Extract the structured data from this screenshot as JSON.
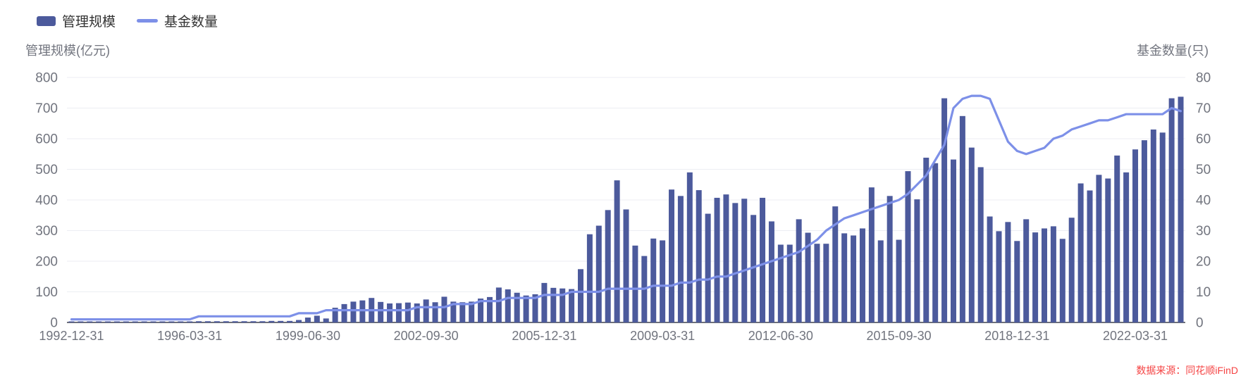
{
  "legend": [
    {
      "label": "管理规模",
      "type": "bar",
      "color": "#4C5A9C"
    },
    {
      "label": "基金数量",
      "type": "line",
      "color": "#7D90E8"
    }
  ],
  "axes": {
    "left_title": "管理规模(亿元)",
    "right_title": "基金数量(只)",
    "left_tick_labels": [
      "0",
      "100",
      "200",
      "300",
      "400",
      "500",
      "600",
      "700",
      "800"
    ],
    "right_tick_labels": [
      "0",
      "10",
      "20",
      "30",
      "40",
      "50",
      "60",
      "70",
      "80"
    ],
    "x_tick_labels": [
      "1992-12-31",
      "1996-03-31",
      "1999-06-30",
      "2002-09-30",
      "2005-12-31",
      "2009-03-31",
      "2012-06-30",
      "2015-09-30",
      "2018-12-31",
      "2022-03-31"
    ],
    "x_tick_indices": [
      0,
      13,
      26,
      39,
      52,
      65,
      78,
      91,
      104,
      117
    ]
  },
  "source_note": "数据来源：同花顺iFinD",
  "colors": {
    "bar": "#4C5A9C",
    "line": "#7D90E8",
    "grid": "#ECEEF3",
    "axis_line": "#6E7079",
    "tick_text": "#71747E",
    "legend_text": "#333333",
    "source_text": "#F54343"
  },
  "chart_data": {
    "type": "bar",
    "subtype": "bar+line dual axis",
    "title": "",
    "xlabel": "",
    "ylabel_left": "管理规模(亿元)",
    "ylabel_right": "基金数量(只)",
    "ylim_left": [
      0,
      800
    ],
    "ylim_right": [
      0,
      80
    ],
    "grid": true,
    "legend_position": "top-left",
    "categories": [
      "1992-12-31",
      "1993-03-31",
      "1993-06-30",
      "1993-09-30",
      "1993-12-31",
      "1994-03-31",
      "1994-06-30",
      "1994-09-30",
      "1994-12-31",
      "1995-03-31",
      "1995-06-30",
      "1995-09-30",
      "1995-12-31",
      "1996-03-31",
      "1996-06-30",
      "1996-09-30",
      "1996-12-31",
      "1997-03-31",
      "1997-06-30",
      "1997-09-30",
      "1997-12-31",
      "1998-03-31",
      "1998-06-30",
      "1998-09-30",
      "1998-12-31",
      "1999-03-31",
      "1999-06-30",
      "1999-09-30",
      "1999-12-31",
      "2000-03-31",
      "2000-06-30",
      "2000-09-30",
      "2000-12-31",
      "2001-03-31",
      "2001-06-30",
      "2001-09-30",
      "2001-12-31",
      "2002-03-31",
      "2002-06-30",
      "2002-09-30",
      "2002-12-31",
      "2003-03-31",
      "2003-06-30",
      "2003-09-30",
      "2003-12-31",
      "2004-03-31",
      "2004-06-30",
      "2004-09-30",
      "2004-12-31",
      "2005-03-31",
      "2005-06-30",
      "2005-09-30",
      "2005-12-31",
      "2006-03-31",
      "2006-06-30",
      "2006-09-30",
      "2006-12-31",
      "2007-03-31",
      "2007-06-30",
      "2007-09-30",
      "2007-12-31",
      "2008-03-31",
      "2008-06-30",
      "2008-09-30",
      "2008-12-31",
      "2009-03-31",
      "2009-06-30",
      "2009-09-30",
      "2009-12-31",
      "2010-03-31",
      "2010-06-30",
      "2010-09-30",
      "2010-12-31",
      "2011-03-31",
      "2011-06-30",
      "2011-09-30",
      "2011-12-31",
      "2012-03-31",
      "2012-06-30",
      "2012-09-30",
      "2012-12-31",
      "2013-03-31",
      "2013-06-30",
      "2013-09-30",
      "2013-12-31",
      "2014-03-31",
      "2014-06-30",
      "2014-09-30",
      "2014-12-31",
      "2015-03-31",
      "2015-06-30",
      "2015-09-30",
      "2015-12-31",
      "2016-03-31",
      "2016-06-30",
      "2016-09-30",
      "2016-12-31",
      "2017-03-31",
      "2017-06-30",
      "2017-09-30",
      "2017-12-31",
      "2018-03-31",
      "2018-06-30",
      "2018-09-30",
      "2018-12-31",
      "2019-03-31",
      "2019-06-30",
      "2019-09-30",
      "2019-12-31",
      "2020-03-31",
      "2020-06-30",
      "2020-09-30",
      "2020-12-31",
      "2021-03-31",
      "2021-06-30",
      "2021-09-30",
      "2021-12-31",
      "2022-03-31",
      "2022-06-30",
      "2022-09-30",
      "2022-12-31",
      "2023-03-31",
      "2023-06-30"
    ],
    "series": [
      {
        "name": "管理规模",
        "type": "bar",
        "axis": "left",
        "unit": "亿元",
        "values": [
          2,
          2,
          2,
          2,
          3,
          3,
          3,
          3,
          3,
          3,
          3,
          3,
          3,
          3,
          4,
          4,
          4,
          4,
          4,
          4,
          4,
          4,
          5,
          5,
          5,
          8,
          16,
          22,
          13,
          48,
          60,
          68,
          72,
          80,
          67,
          62,
          63,
          65,
          62,
          75,
          66,
          84,
          68,
          66,
          68,
          78,
          83,
          114,
          108,
          97,
          88,
          92,
          129,
          113,
          111,
          109,
          174,
          288,
          316,
          367,
          464,
          369,
          251,
          217,
          274,
          268,
          434,
          413,
          490,
          432,
          355,
          407,
          418,
          390,
          404,
          351,
          407,
          330,
          254,
          254,
          337,
          293,
          257,
          257,
          379,
          291,
          284,
          307,
          441,
          268,
          413,
          270,
          494,
          402,
          538,
          520,
          732,
          532,
          674,
          571,
          507,
          346,
          298,
          328,
          266,
          337,
          294,
          307,
          314,
          273,
          342,
          454,
          431,
          482,
          470,
          545,
          490,
          565,
          595,
          630,
          620,
          732,
          737
        ]
      },
      {
        "name": "基金数量",
        "type": "line",
        "axis": "right",
        "unit": "只",
        "values": [
          1,
          1,
          1,
          1,
          1,
          1,
          1,
          1,
          1,
          1,
          1,
          1,
          1,
          1,
          2,
          2,
          2,
          2,
          2,
          2,
          2,
          2,
          2,
          2,
          2,
          3,
          3,
          3,
          4,
          4,
          4,
          4,
          4,
          4,
          4,
          4,
          4,
          4,
          5,
          5,
          5,
          5,
          6,
          6,
          6,
          7,
          7,
          7,
          8,
          8,
          8,
          8,
          9,
          9,
          9,
          10,
          10,
          10,
          10,
          11,
          11,
          11,
          11,
          11,
          12,
          12,
          12,
          13,
          13,
          14,
          14,
          15,
          15,
          16,
          17,
          18,
          19,
          20,
          21,
          22,
          23,
          25,
          27,
          30,
          32,
          34,
          35,
          36,
          37,
          38,
          39,
          40,
          42,
          45,
          48,
          53,
          58,
          70,
          73,
          74,
          74,
          73,
          66,
          59,
          56,
          55,
          56,
          57,
          60,
          61,
          63,
          64,
          65,
          66,
          66,
          67,
          68,
          68,
          68,
          68,
          68,
          70,
          69
        ]
      }
    ]
  }
}
